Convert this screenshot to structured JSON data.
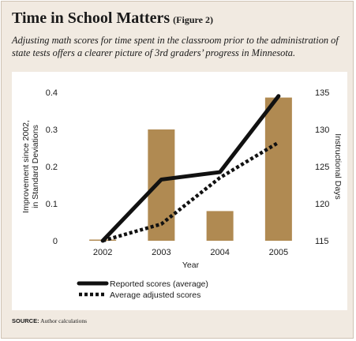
{
  "header": {
    "title": "Time in School Matters",
    "figure_label": "(Figure 2)",
    "subtitle": "Adjusting math scores for time spent in the classroom prior to the administration of state tests offers a clearer picture of 3rd graders’ progress in Minnesota."
  },
  "footer": {
    "source_label": "SOURCE:",
    "source_text": "Author calculations"
  },
  "colors": {
    "panel": "#f1eae1",
    "bar": "#b08a52",
    "line": "#111111"
  },
  "chart_data": {
    "type": "bar",
    "categories": [
      "2002",
      "2003",
      "2004",
      "2005"
    ],
    "xlabel": "Year",
    "ylabel_left": [
      "Improvement since 2002,",
      "in Standard Deviations"
    ],
    "ylabel_right": "Instructional Days",
    "ylim_left": [
      0,
      0.4
    ],
    "yticks_left": [
      "0",
      "0.1",
      "0.2",
      "0.3",
      "0.4"
    ],
    "ylim_right": [
      115,
      135
    ],
    "yticks_right": [
      "115",
      "120",
      "125",
      "130",
      "135"
    ],
    "bars": {
      "axis": "right",
      "values": [
        115,
        130,
        119,
        134.3
      ]
    },
    "series": [
      {
        "name": "Reported scores (average)",
        "axis": "left",
        "style": "solid",
        "values": [
          0,
          0.165,
          0.185,
          0.39
        ]
      },
      {
        "name": "Average adjusted scores",
        "axis": "left",
        "style": "dotted",
        "values": [
          0,
          0.045,
          0.17,
          0.265
        ]
      }
    ],
    "grid": false,
    "legend": "bottom"
  }
}
